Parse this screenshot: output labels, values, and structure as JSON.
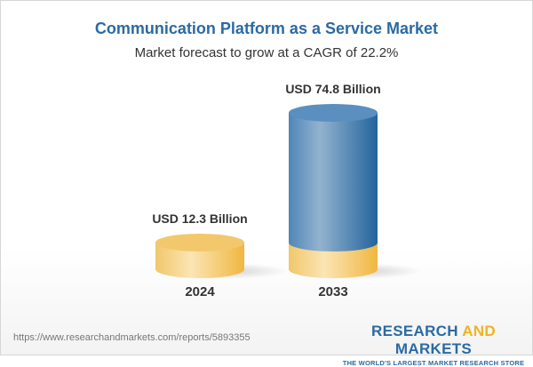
{
  "title": "Communication Platform as a Service Market",
  "subtitle": "Market forecast to grow at a CAGR of 22.2%",
  "chart_data": {
    "type": "bar",
    "style": "3d-cylinder",
    "categories": [
      "2024",
      "2033"
    ],
    "values": [
      12.3,
      74.8
    ],
    "data_labels": [
      "USD 12.3 Billion",
      "USD 74.8 Billion"
    ],
    "unit": "USD Billion",
    "grid": false,
    "colors": {
      "base": "#f3c566",
      "growth": "#4f86b8"
    }
  },
  "footer": {
    "url": "https://www.researchandmarkets.com/reports/5893355",
    "logo_part1": "RESEARCH ",
    "logo_part2": "AND",
    "logo_part3": " MARKETS",
    "tagline": "THE WORLD'S LARGEST MARKET RESEARCH STORE"
  }
}
